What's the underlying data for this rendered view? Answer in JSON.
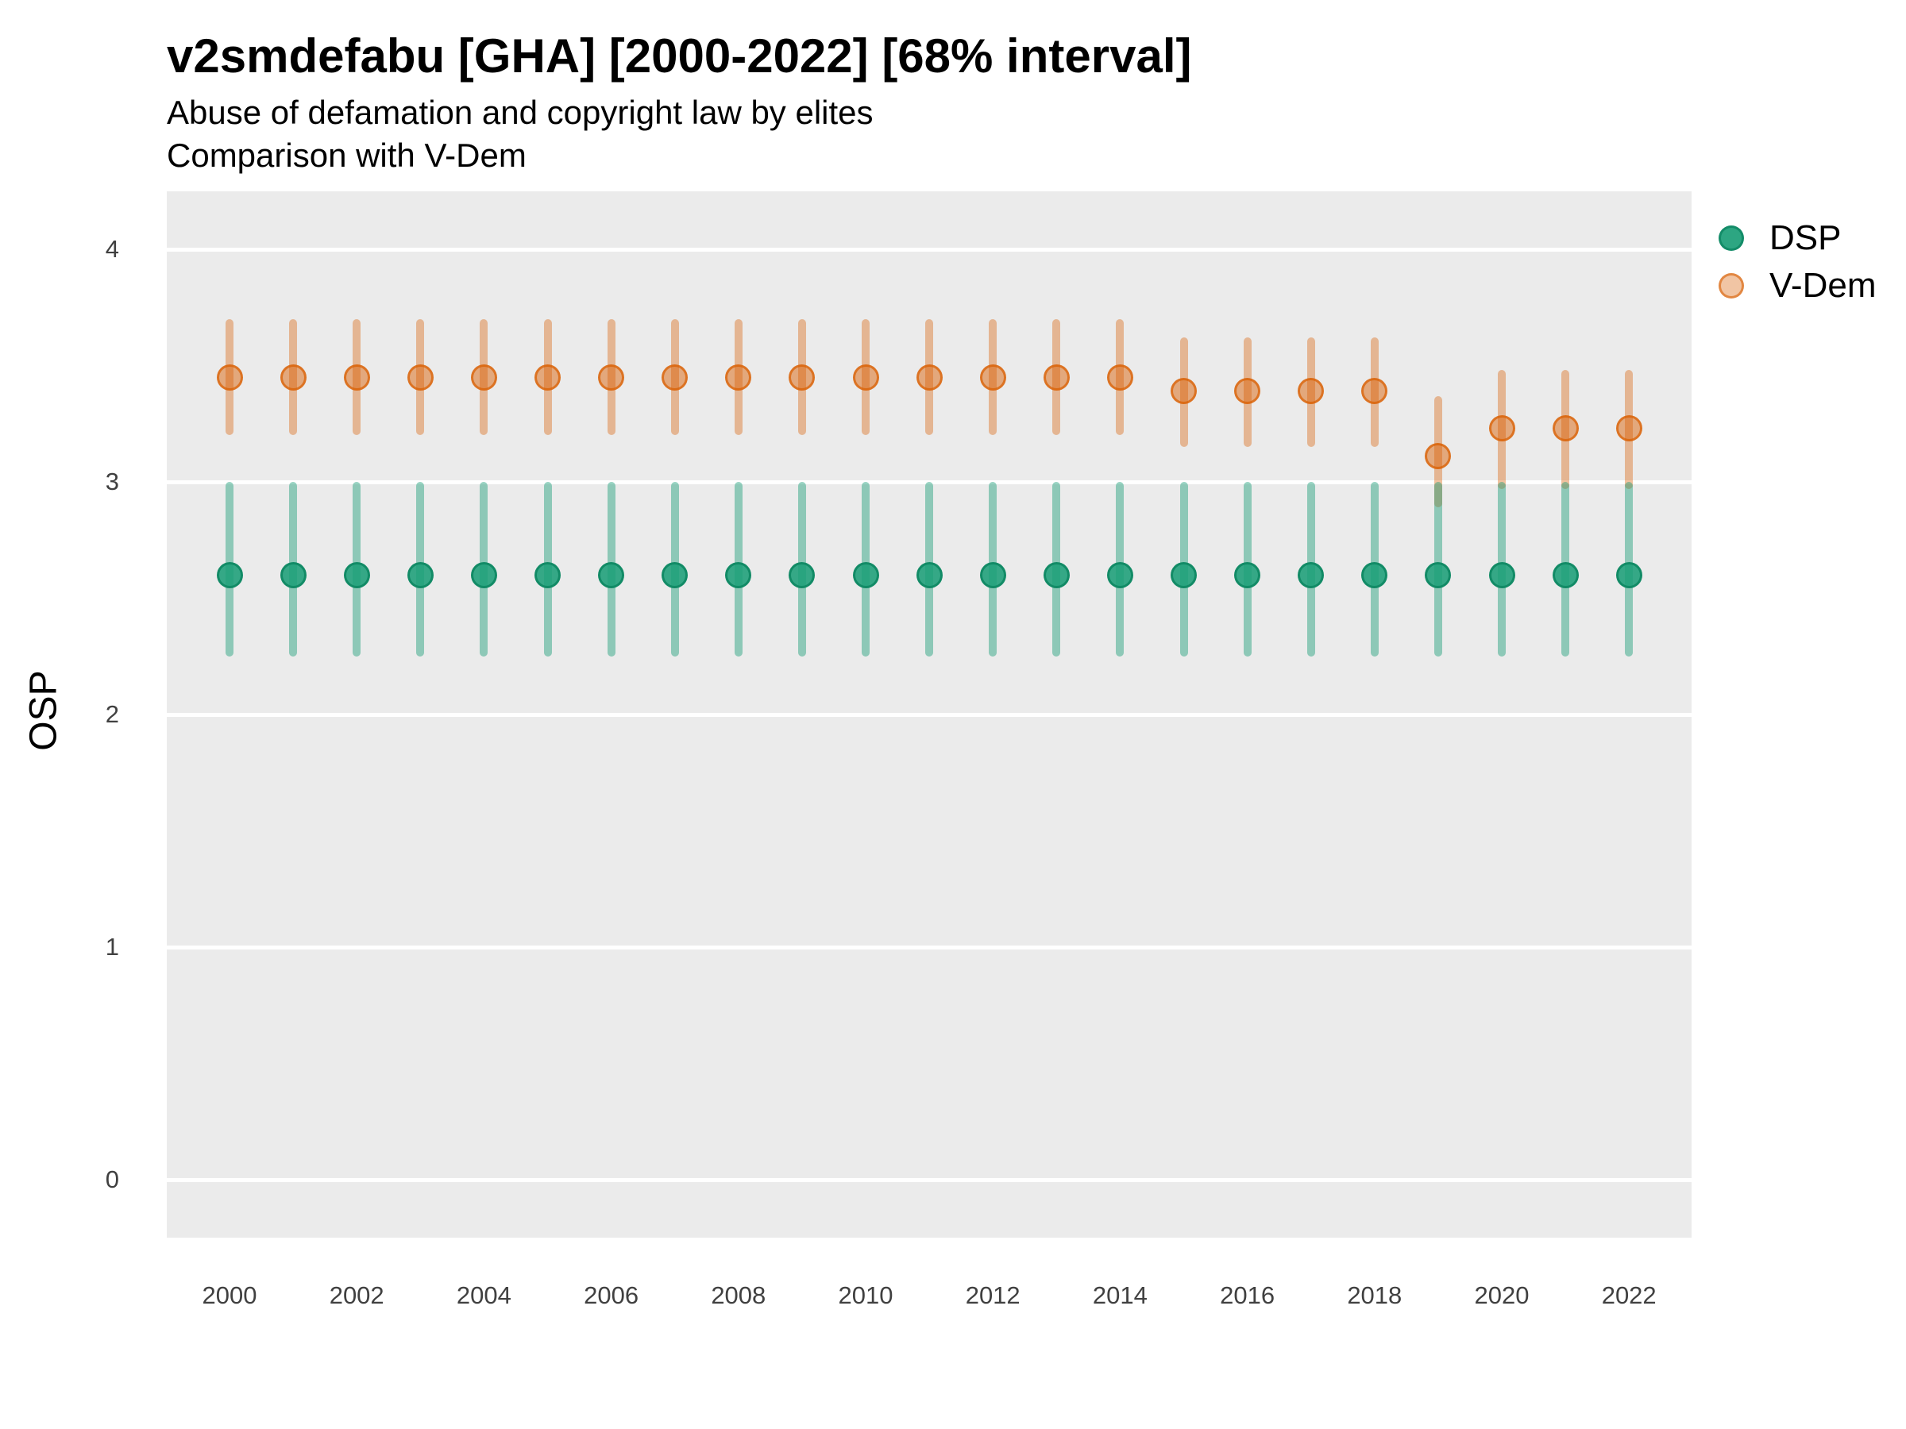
{
  "chart_data": {
    "type": "pointrange",
    "title": "v2smdefabu [GHA] [2000-2022] [68% interval]",
    "subtitle": [
      "Abuse of defamation and copyright law by elites",
      "Comparison with V-Dem"
    ],
    "xlabel": "",
    "ylabel": "OSP",
    "interval_level": "68%",
    "country": "GHA",
    "variable": "v2smdefabu",
    "grid": "horizontal-major-only",
    "legend_position": "right",
    "panel_bg": "#EBEBEB",
    "gridline_color": "#FFFFFF",
    "axis_text_color": "#404040",
    "ylim": [
      -0.25,
      4.26
    ],
    "y_ticks": [
      4,
      3,
      2,
      1,
      0
    ],
    "x_ticks": [
      "2000",
      "2002",
      "2004",
      "2006",
      "2008",
      "2010",
      "2012",
      "2014",
      "2016",
      "2018",
      "2020",
      "2022"
    ],
    "series": [
      {
        "name": "DSP",
        "color": "#1B9E77",
        "points": [
          {
            "year": 2000,
            "est": 2.6,
            "lo": 2.25,
            "hi": 3.0
          },
          {
            "year": 2001,
            "est": 2.6,
            "lo": 2.25,
            "hi": 3.0
          },
          {
            "year": 2002,
            "est": 2.6,
            "lo": 2.25,
            "hi": 3.0
          },
          {
            "year": 2003,
            "est": 2.6,
            "lo": 2.25,
            "hi": 3.0
          },
          {
            "year": 2004,
            "est": 2.6,
            "lo": 2.25,
            "hi": 3.0
          },
          {
            "year": 2005,
            "est": 2.6,
            "lo": 2.25,
            "hi": 3.0
          },
          {
            "year": 2006,
            "est": 2.6,
            "lo": 2.25,
            "hi": 3.0
          },
          {
            "year": 2007,
            "est": 2.6,
            "lo": 2.25,
            "hi": 3.0
          },
          {
            "year": 2008,
            "est": 2.6,
            "lo": 2.25,
            "hi": 3.0
          },
          {
            "year": 2009,
            "est": 2.6,
            "lo": 2.25,
            "hi": 3.0
          },
          {
            "year": 2010,
            "est": 2.6,
            "lo": 2.25,
            "hi": 3.0
          },
          {
            "year": 2011,
            "est": 2.6,
            "lo": 2.25,
            "hi": 3.0
          },
          {
            "year": 2012,
            "est": 2.6,
            "lo": 2.25,
            "hi": 3.0
          },
          {
            "year": 2013,
            "est": 2.6,
            "lo": 2.25,
            "hi": 3.0
          },
          {
            "year": 2014,
            "est": 2.6,
            "lo": 2.25,
            "hi": 3.0
          },
          {
            "year": 2015,
            "est": 2.6,
            "lo": 2.25,
            "hi": 3.0
          },
          {
            "year": 2016,
            "est": 2.6,
            "lo": 2.25,
            "hi": 3.0
          },
          {
            "year": 2017,
            "est": 2.6,
            "lo": 2.25,
            "hi": 3.0
          },
          {
            "year": 2018,
            "est": 2.6,
            "lo": 2.25,
            "hi": 3.0
          },
          {
            "year": 2019,
            "est": 2.6,
            "lo": 2.25,
            "hi": 3.0
          },
          {
            "year": 2020,
            "est": 2.6,
            "lo": 2.25,
            "hi": 3.0
          },
          {
            "year": 2021,
            "est": 2.6,
            "lo": 2.25,
            "hi": 3.0
          },
          {
            "year": 2022,
            "est": 2.6,
            "lo": 2.25,
            "hi": 3.0
          }
        ]
      },
      {
        "name": "V-Dem",
        "color": "#D95F02",
        "points": [
          {
            "year": 2000,
            "est": 3.45,
            "lo": 3.2,
            "hi": 3.7
          },
          {
            "year": 2001,
            "est": 3.45,
            "lo": 3.2,
            "hi": 3.7
          },
          {
            "year": 2002,
            "est": 3.45,
            "lo": 3.2,
            "hi": 3.7
          },
          {
            "year": 2003,
            "est": 3.45,
            "lo": 3.2,
            "hi": 3.7
          },
          {
            "year": 2004,
            "est": 3.45,
            "lo": 3.2,
            "hi": 3.7
          },
          {
            "year": 2005,
            "est": 3.45,
            "lo": 3.2,
            "hi": 3.7
          },
          {
            "year": 2006,
            "est": 3.45,
            "lo": 3.2,
            "hi": 3.7
          },
          {
            "year": 2007,
            "est": 3.45,
            "lo": 3.2,
            "hi": 3.7
          },
          {
            "year": 2008,
            "est": 3.45,
            "lo": 3.2,
            "hi": 3.7
          },
          {
            "year": 2009,
            "est": 3.45,
            "lo": 3.2,
            "hi": 3.7
          },
          {
            "year": 2010,
            "est": 3.45,
            "lo": 3.2,
            "hi": 3.7
          },
          {
            "year": 2011,
            "est": 3.45,
            "lo": 3.2,
            "hi": 3.7
          },
          {
            "year": 2012,
            "est": 3.45,
            "lo": 3.2,
            "hi": 3.7
          },
          {
            "year": 2013,
            "est": 3.45,
            "lo": 3.2,
            "hi": 3.7
          },
          {
            "year": 2014,
            "est": 3.45,
            "lo": 3.2,
            "hi": 3.7
          },
          {
            "year": 2015,
            "est": 3.39,
            "lo": 3.15,
            "hi": 3.62
          },
          {
            "year": 2016,
            "est": 3.39,
            "lo": 3.15,
            "hi": 3.62
          },
          {
            "year": 2017,
            "est": 3.39,
            "lo": 3.15,
            "hi": 3.62
          },
          {
            "year": 2018,
            "est": 3.39,
            "lo": 3.15,
            "hi": 3.62
          },
          {
            "year": 2019,
            "est": 3.11,
            "lo": 2.89,
            "hi": 3.37
          },
          {
            "year": 2020,
            "est": 3.23,
            "lo": 2.97,
            "hi": 3.48
          },
          {
            "year": 2021,
            "est": 3.23,
            "lo": 2.97,
            "hi": 3.48
          },
          {
            "year": 2022,
            "est": 3.23,
            "lo": 2.97,
            "hi": 3.48
          }
        ]
      }
    ]
  }
}
